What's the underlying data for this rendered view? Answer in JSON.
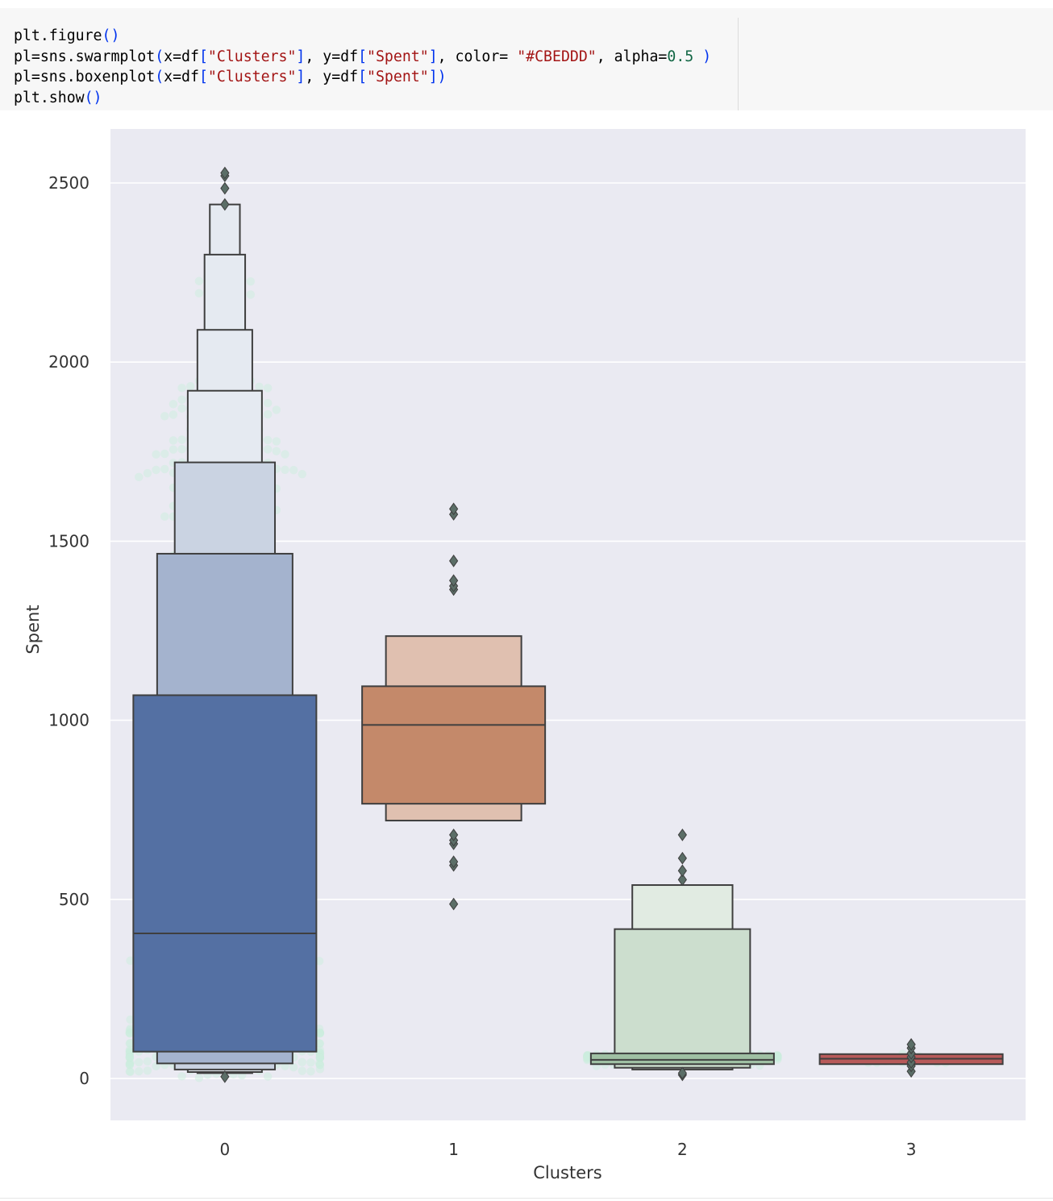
{
  "code_cell": {
    "lines": [
      [
        {
          "t": "plt.figure"
        },
        {
          "t": "()",
          "c": "p"
        }
      ],
      [
        {
          "t": "pl=sns.swarmplot"
        },
        {
          "t": "(",
          "c": "p"
        },
        {
          "t": "x=df"
        },
        {
          "t": "[",
          "c": "p"
        },
        {
          "t": "\"Clusters\"",
          "c": "s"
        },
        {
          "t": "]",
          "c": "p"
        },
        {
          "t": ", y=df"
        },
        {
          "t": "[",
          "c": "p"
        },
        {
          "t": "\"Spent\"",
          "c": "s"
        },
        {
          "t": "]",
          "c": "p"
        },
        {
          "t": ", color= "
        },
        {
          "t": "\"#CBEDDD\"",
          "c": "s"
        },
        {
          "t": ", alpha="
        },
        {
          "t": "0.5",
          "c": "n"
        },
        {
          "t": " "
        },
        {
          "t": ")",
          "c": "p"
        }
      ],
      [
        {
          "t": "pl=sns.boxenplot"
        },
        {
          "t": "(",
          "c": "p"
        },
        {
          "t": "x=df"
        },
        {
          "t": "[",
          "c": "p"
        },
        {
          "t": "\"Clusters\"",
          "c": "s"
        },
        {
          "t": "]",
          "c": "p"
        },
        {
          "t": ", y=df"
        },
        {
          "t": "[",
          "c": "p"
        },
        {
          "t": "\"Spent\"",
          "c": "s"
        },
        {
          "t": "])",
          "c": "p"
        }
      ],
      [
        {
          "t": "plt.show"
        },
        {
          "t": "()",
          "c": "p"
        }
      ]
    ]
  },
  "chart_data": {
    "type": "boxen",
    "xlabel": "Clusters",
    "ylabel": "Spent",
    "categories": [
      "0",
      "1",
      "2",
      "3"
    ],
    "yticks": [
      0,
      500,
      1000,
      1500,
      2000,
      2500
    ],
    "ylim": [
      -115,
      2650
    ],
    "grid": true,
    "background": "#eaeaf2",
    "swarm_color": "#CBEDDD",
    "swarm_alpha": 0.5,
    "groups": [
      {
        "category": "0",
        "color": "#5470a3",
        "median": 405,
        "boxes": [
          {
            "low": 75,
            "high": 1070
          },
          {
            "low": 42,
            "high": 1465
          },
          {
            "low": 25,
            "high": 1720
          },
          {
            "low": 18,
            "high": 1920
          },
          {
            "low": 15,
            "high": 2090
          },
          {
            "high": 2300
          },
          {
            "high": 2440
          }
        ],
        "outliers": [
          5,
          2440,
          2485,
          2520,
          2528
        ]
      },
      {
        "category": "1",
        "color": "#c4896a",
        "median": 987,
        "boxes": [
          {
            "low": 767,
            "high": 1095
          },
          {
            "low": 720,
            "high": 1235
          }
        ],
        "outliers": [
          487,
          595,
          605,
          655,
          665,
          680,
          1365,
          1375,
          1390,
          1445,
          1575,
          1590
        ]
      },
      {
        "category": "2",
        "color": "#9fc0a3",
        "median": 52,
        "boxes": [
          {
            "low": 40,
            "high": 70
          },
          {
            "low": 30,
            "high": 417
          },
          {
            "low": 25,
            "high": 540
          }
        ],
        "outliers": [
          10,
          15,
          555,
          580,
          615,
          680
        ]
      },
      {
        "category": "3",
        "color": "#b85a5a",
        "median": 55,
        "boxes": [
          {
            "low": 40,
            "high": 68
          }
        ],
        "outliers": [
          20,
          35,
          45,
          60,
          70,
          85,
          95
        ]
      }
    ]
  }
}
